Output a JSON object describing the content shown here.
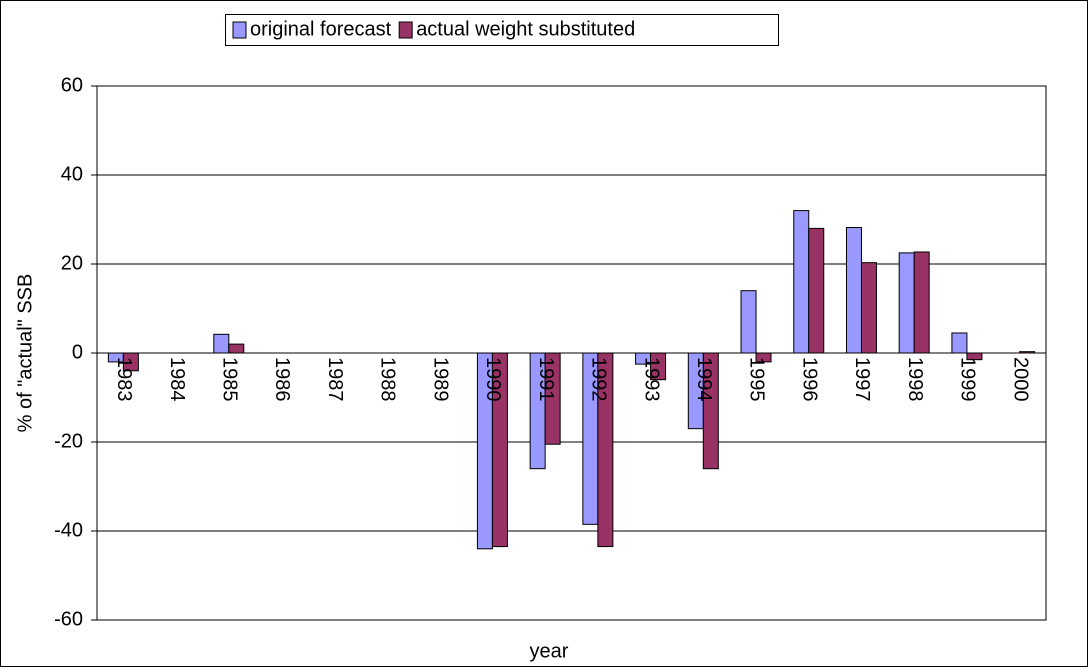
{
  "chart_data": {
    "type": "bar",
    "x_label": "year",
    "y_label": "% of \"actual\" SSB",
    "categories": [
      "1983",
      "1984",
      "1985",
      "1986",
      "1987",
      "1988",
      "1989",
      "1990",
      "1991",
      "1992",
      "1993",
      "1994",
      "1995",
      "1996",
      "1997",
      "1998",
      "1999",
      "2000"
    ],
    "series": [
      {
        "name": "original forecast",
        "color": "#9999ff",
        "values": [
          -2,
          null,
          4.2,
          null,
          null,
          null,
          null,
          -44,
          -26,
          -38.5,
          -2.5,
          -17,
          14,
          32,
          28.2,
          22.5,
          4.5,
          null
        ]
      },
      {
        "name": "actual weight substituted",
        "color": "#993366",
        "values": [
          -4,
          null,
          2,
          null,
          null,
          null,
          null,
          -43.5,
          -20.5,
          -43.5,
          -6,
          -26,
          -2,
          28,
          20.3,
          22.7,
          -1.5,
          0.3
        ]
      }
    ],
    "ylim": [
      -60,
      60
    ],
    "yticks": [
      -60,
      -40,
      -20,
      0,
      20,
      40,
      60
    ],
    "grid": true
  }
}
